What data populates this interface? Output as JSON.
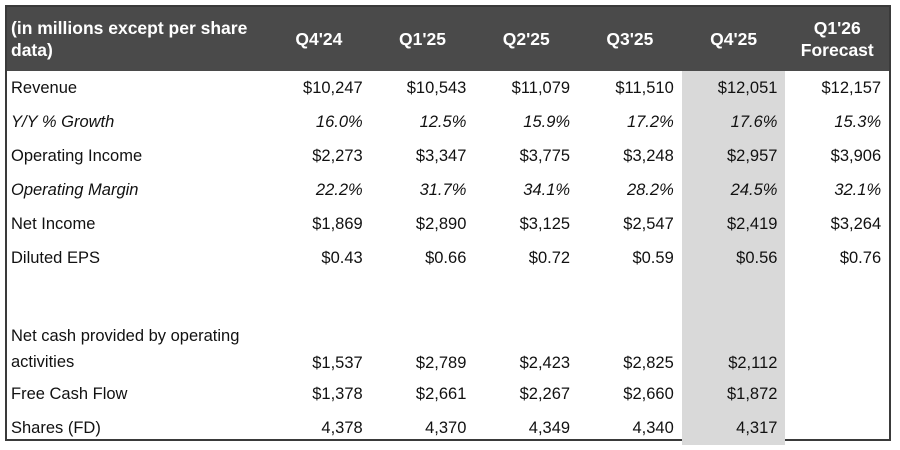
{
  "table": {
    "header_label": "(in millions except per share data)",
    "columns": [
      "Q4'24",
      "Q1'25",
      "Q2'25",
      "Q3'25",
      "Q4'25",
      "Q1'26 Forecast"
    ],
    "highlight_color": "#d9d9d9",
    "header_bg": "#4a4a4a",
    "rows": [
      {
        "label": "Revenue",
        "values": [
          "$10,247",
          "$10,543",
          "$11,079",
          "$11,510",
          "$12,051",
          "$12,157"
        ]
      },
      {
        "label": "Y/Y % Growth",
        "values": [
          "16.0%",
          "12.5%",
          "15.9%",
          "17.2%",
          "17.6%",
          "15.3%"
        ]
      },
      {
        "label": "Operating Income",
        "values": [
          "$2,273",
          "$3,347",
          "$3,775",
          "$3,248",
          "$2,957",
          "$3,906"
        ]
      },
      {
        "label": "Operating Margin",
        "values": [
          "22.2%",
          "31.7%",
          "34.1%",
          "28.2%",
          "24.5%",
          "32.1%"
        ]
      },
      {
        "label": "Net Income",
        "values": [
          "$1,869",
          "$2,890",
          "$3,125",
          "$2,547",
          "$2,419",
          "$3,264"
        ]
      },
      {
        "label": "Diluted EPS",
        "values": [
          "$0.43",
          "$0.66",
          "$0.72",
          "$0.59",
          "$0.56",
          "$0.76"
        ]
      },
      {
        "label": "",
        "values": [
          "",
          "",
          "",
          "",
          "",
          ""
        ]
      },
      {
        "label": "Net cash provided by operating activities",
        "values": [
          "$1,537",
          "$2,789",
          "$2,423",
          "$2,825",
          "$2,112",
          ""
        ]
      },
      {
        "label": "Free Cash Flow",
        "values": [
          "$1,378",
          "$2,661",
          "$2,267",
          "$2,660",
          "$1,872",
          ""
        ]
      },
      {
        "label": "Shares (FD)",
        "values": [
          "4,378",
          "4,370",
          "4,349",
          "4,340",
          "4,317",
          ""
        ]
      }
    ]
  }
}
